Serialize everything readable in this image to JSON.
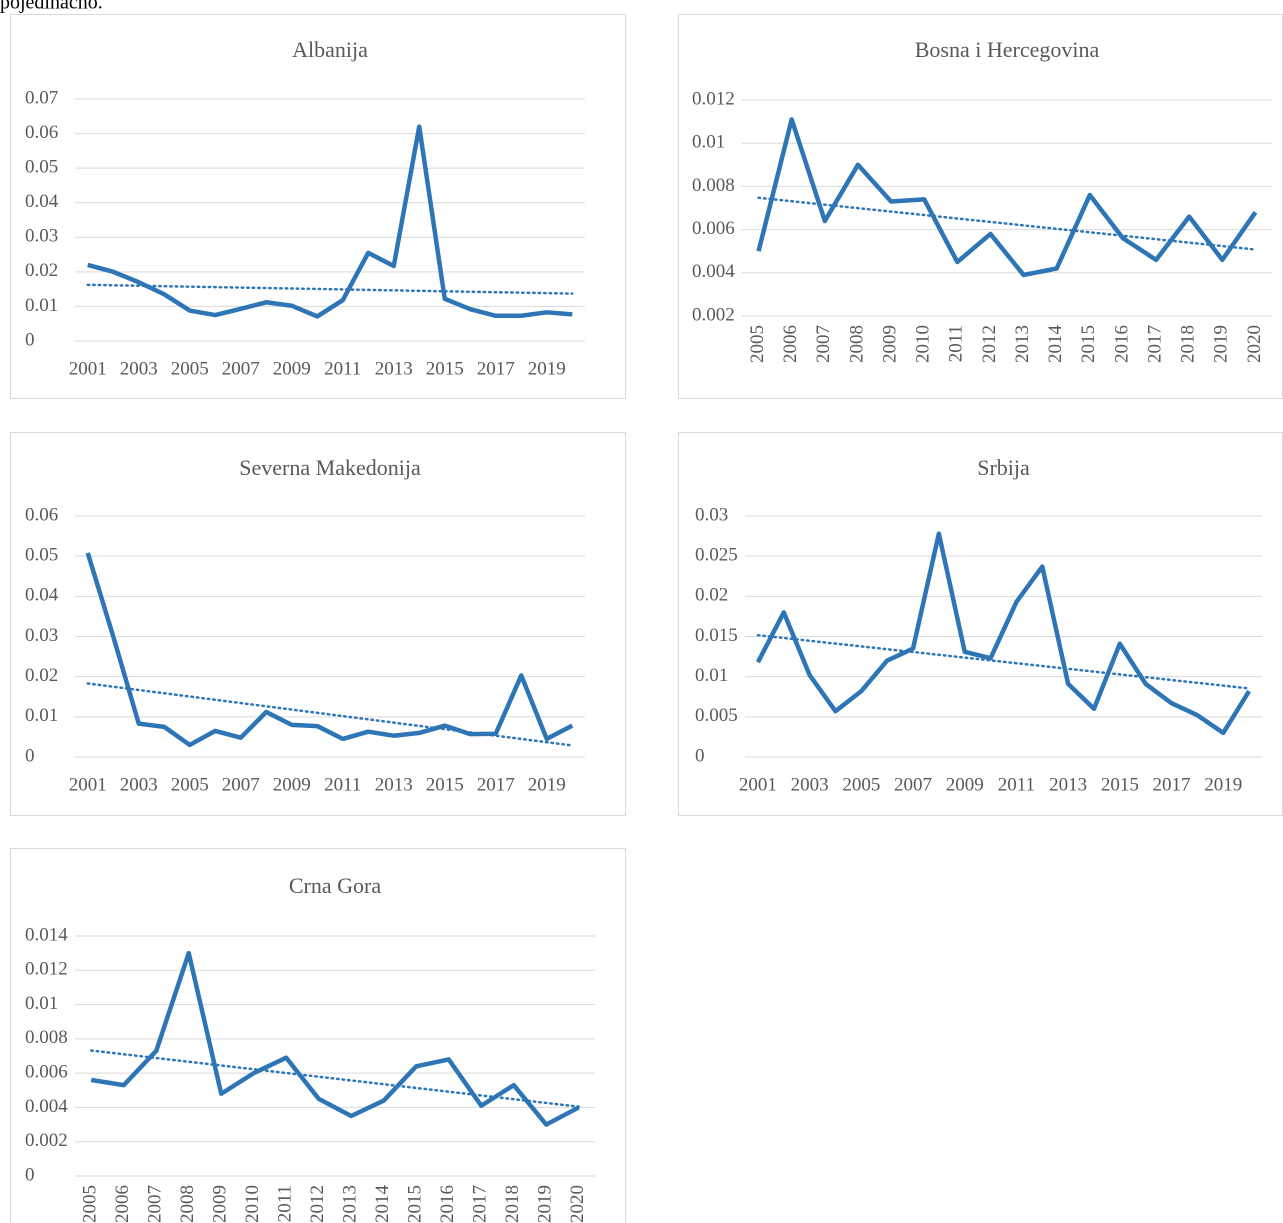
{
  "header_text": "pojedinačno.",
  "chart_data": [
    {
      "type": "line",
      "title": "Albanija",
      "color": "#2e75b6",
      "trendline": "linear",
      "grid": true,
      "categories": [
        2001,
        null,
        2003,
        null,
        2005,
        null,
        2007,
        null,
        2009,
        null,
        2011,
        null,
        2013,
        null,
        2015,
        null,
        2017,
        null,
        2019,
        null
      ],
      "values": [
        0.022,
        0.02,
        0.017,
        0.0135,
        0.0088,
        0.0075,
        0.0093,
        0.0112,
        0.0102,
        0.0071,
        0.0118,
        0.0255,
        0.0217,
        0.062,
        0.0122,
        0.0092,
        0.0073,
        0.0073,
        0.0083,
        0.0077
      ],
      "ylim": [
        0,
        0.07
      ],
      "yticks": [
        0,
        0.01,
        0.02,
        0.03,
        0.04,
        0.05,
        0.06,
        0.07
      ]
    },
    {
      "type": "line",
      "title": "Bosna i Hercegovina",
      "color": "#2e75b6",
      "trendline": "linear",
      "grid": true,
      "categories": [
        2005,
        2006,
        2007,
        2008,
        2009,
        2010,
        2011,
        2012,
        2013,
        2014,
        2015,
        2016,
        2017,
        2018,
        2019,
        2020
      ],
      "values": [
        0.005,
        0.0111,
        0.0064,
        0.009,
        0.0073,
        0.0074,
        0.0045,
        0.0058,
        0.0039,
        0.0042,
        0.0076,
        0.0056,
        0.0046,
        0.0066,
        0.0046,
        0.0068
      ],
      "ylim": [
        0.002,
        0.012
      ],
      "yticks": [
        0.002,
        0.004,
        0.006,
        0.008,
        0.01,
        0.012
      ]
    },
    {
      "type": "line",
      "title": "Severna Makedonija",
      "color": "#2e75b6",
      "trendline": "linear",
      "grid": true,
      "categories": [
        2001,
        null,
        2003,
        null,
        2005,
        null,
        2007,
        null,
        2009,
        null,
        2011,
        null,
        2013,
        null,
        2015,
        null,
        2017,
        null,
        2019,
        null
      ],
      "values": [
        0.0508,
        0.03,
        0.0083,
        0.0075,
        0.003,
        0.0065,
        0.0048,
        0.0112,
        0.008,
        0.0077,
        0.0045,
        0.0063,
        0.0053,
        0.006,
        0.0078,
        0.0057,
        0.0058,
        0.0203,
        0.0045,
        0.0078
      ],
      "ylim": [
        0,
        0.06
      ],
      "yticks": [
        0,
        0.01,
        0.02,
        0.03,
        0.04,
        0.05,
        0.06
      ]
    },
    {
      "type": "line",
      "title": "Srbija",
      "color": "#2e75b6",
      "trendline": "linear",
      "grid": true,
      "categories": [
        2001,
        null,
        2003,
        null,
        2005,
        null,
        2007,
        null,
        2009,
        null,
        2011,
        null,
        2013,
        null,
        2015,
        null,
        2017,
        null,
        2019,
        null
      ],
      "values": [
        0.0118,
        0.018,
        0.0102,
        0.0057,
        0.0082,
        0.012,
        0.0135,
        0.0278,
        0.0131,
        0.0123,
        0.0193,
        0.0237,
        0.0091,
        0.006,
        0.0141,
        0.0091,
        0.0067,
        0.0052,
        0.003,
        0.0082
      ],
      "ylim": [
        0,
        0.03
      ],
      "yticks": [
        0,
        0.005,
        0.01,
        0.015,
        0.02,
        0.025,
        0.03
      ]
    },
    {
      "type": "line",
      "title": "Crna Gora",
      "color": "#2e75b6",
      "trendline": "linear",
      "grid": true,
      "categories": [
        2005,
        2006,
        2007,
        2008,
        2009,
        2010,
        2011,
        2012,
        2013,
        2014,
        2015,
        2016,
        2017,
        2018,
        2019,
        2020
      ],
      "values": [
        0.0056,
        0.0053,
        0.0073,
        0.013,
        0.0048,
        0.006,
        0.0069,
        0.0045,
        0.0035,
        0.0044,
        0.0064,
        0.0068,
        0.0041,
        0.0053,
        0.003,
        0.004
      ],
      "ylim": [
        0,
        0.014
      ],
      "yticks": [
        0,
        0.002,
        0.004,
        0.006,
        0.008,
        0.01,
        0.012,
        0.014
      ]
    }
  ]
}
